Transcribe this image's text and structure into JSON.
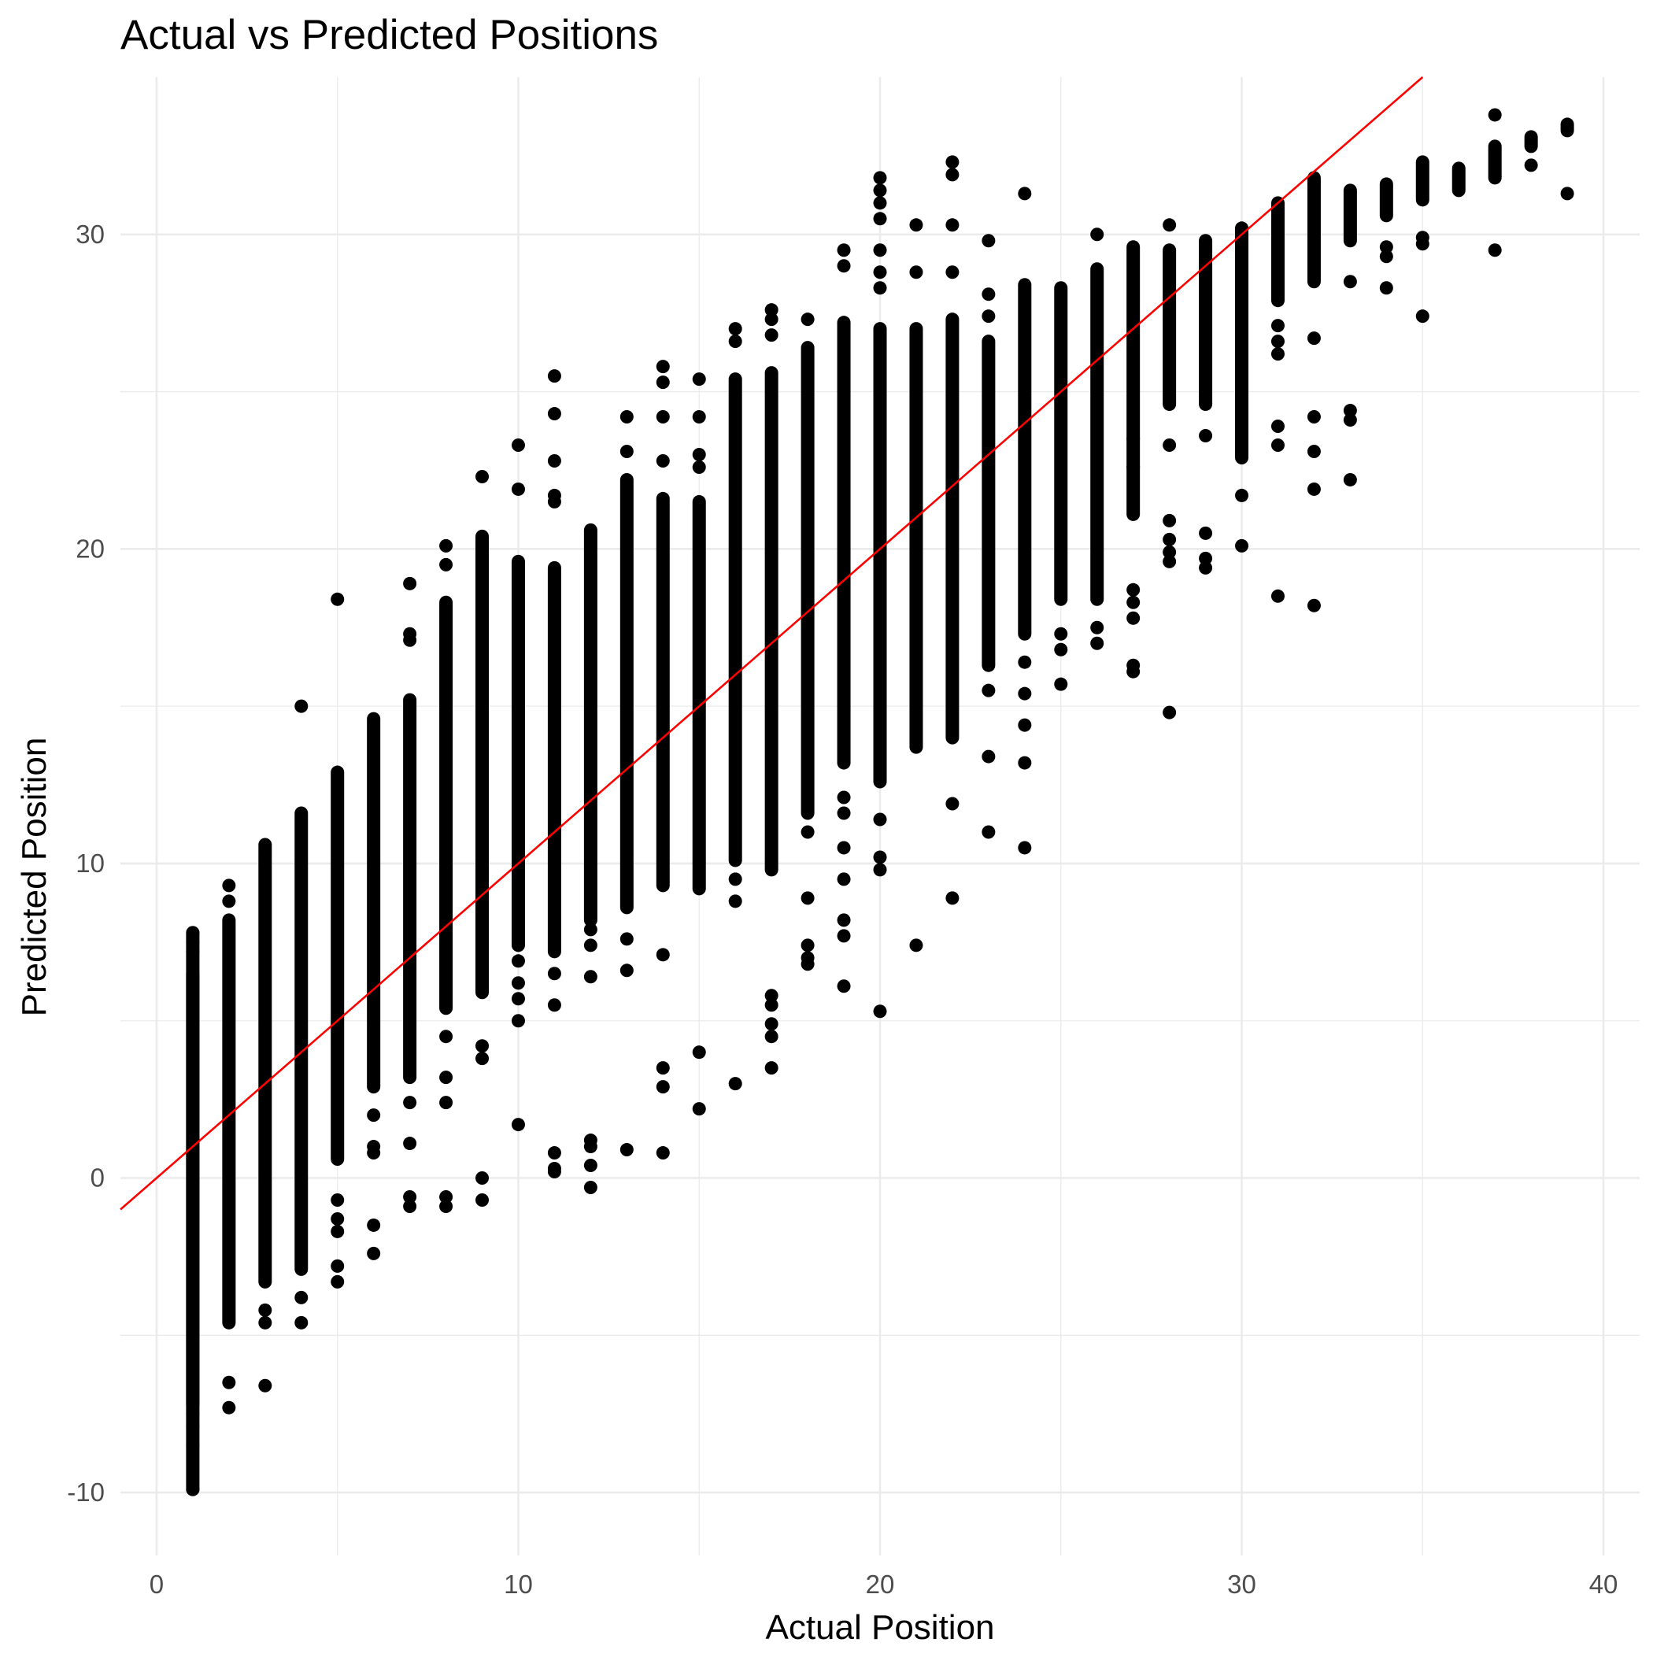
{
  "chart_data": {
    "type": "scatter",
    "title": "Actual vs Predicted Positions",
    "xlabel": "Actual Position",
    "ylabel": "Predicted Position",
    "xlim": [
      -1,
      41
    ],
    "ylim": [
      -12,
      35
    ],
    "x_ticks": [
      0,
      10,
      20,
      30,
      40
    ],
    "y_ticks": [
      -10,
      0,
      10,
      20,
      30
    ],
    "x_tick_labels": [
      "0",
      "10",
      "20",
      "30",
      "40"
    ],
    "y_tick_labels": [
      "-10",
      "0",
      "10",
      "20",
      "30"
    ],
    "grid": true,
    "legend": "none",
    "point_color": "#000000",
    "reference_line": {
      "slope": 1,
      "intercept": 0,
      "color": "#ff0000"
    },
    "groups": [
      {
        "x": 1,
        "ranges": [
          [
            -7.2,
            6.5
          ],
          [
            -9.9,
            7.8
          ]
        ],
        "points": [
          7.8,
          7.5,
          7.2,
          -7.5,
          -7.9,
          -8.5,
          -9.9
        ]
      },
      {
        "x": 2,
        "ranges": [
          [
            -4.6,
            8.2
          ]
        ],
        "points": [
          9.3,
          8.8,
          -6.5,
          -7.3
        ]
      },
      {
        "x": 3,
        "ranges": [
          [
            -3.3,
            10.6
          ]
        ],
        "points": [
          -4.2,
          -4.6,
          -6.6
        ]
      },
      {
        "x": 4,
        "ranges": [
          [
            -2.9,
            11.6
          ]
        ],
        "points": [
          15.0,
          -3.8,
          -4.6
        ]
      },
      {
        "x": 5,
        "ranges": [
          [
            0.6,
            12.9
          ]
        ],
        "points": [
          18.4,
          -0.7,
          -1.3,
          -1.7,
          -2.8,
          -3.3
        ]
      },
      {
        "x": 6,
        "ranges": [
          [
            2.9,
            14.6
          ]
        ],
        "points": [
          2.0,
          1.0,
          0.8,
          -1.5,
          -2.4
        ]
      },
      {
        "x": 7,
        "ranges": [
          [
            3.2,
            15.2
          ]
        ],
        "points": [
          18.9,
          17.3,
          17.1,
          2.4,
          1.1,
          -0.6,
          -0.9
        ]
      },
      {
        "x": 8,
        "ranges": [
          [
            5.4,
            18.3
          ]
        ],
        "points": [
          20.1,
          19.5,
          4.5,
          3.2,
          2.4,
          -0.6,
          -0.9
        ]
      },
      {
        "x": 9,
        "ranges": [
          [
            5.9,
            20.4
          ]
        ],
        "points": [
          22.3,
          4.2,
          3.8,
          0.0,
          -0.7
        ]
      },
      {
        "x": 10,
        "ranges": [
          [
            7.4,
            19.6
          ]
        ],
        "points": [
          23.3,
          21.9,
          6.9,
          6.2,
          5.7,
          5.0,
          1.7
        ]
      },
      {
        "x": 11,
        "ranges": [
          [
            7.2,
            19.4
          ]
        ],
        "points": [
          25.5,
          24.3,
          22.8,
          21.7,
          21.5,
          6.5,
          5.5,
          0.8,
          0.3,
          0.2
        ]
      },
      {
        "x": 12,
        "ranges": [
          [
            8.2,
            20.6
          ]
        ],
        "points": [
          7.9,
          7.4,
          6.4,
          1.2,
          1.0,
          0.4,
          -0.3
        ]
      },
      {
        "x": 13,
        "ranges": [
          [
            8.6,
            22.2
          ]
        ],
        "points": [
          24.2,
          23.1,
          7.6,
          6.6,
          0.9
        ]
      },
      {
        "x": 14,
        "ranges": [
          [
            9.3,
            21.6
          ]
        ],
        "points": [
          25.8,
          25.3,
          24.2,
          22.8,
          7.1,
          3.5,
          2.9,
          0.8
        ]
      },
      {
        "x": 15,
        "ranges": [
          [
            9.2,
            21.5
          ]
        ],
        "points": [
          25.4,
          24.2,
          23.0,
          22.6,
          4.0,
          2.2
        ]
      },
      {
        "x": 16,
        "ranges": [
          [
            10.1,
            25.4
          ]
        ],
        "points": [
          27.0,
          26.6,
          9.5,
          8.8,
          3.0
        ]
      },
      {
        "x": 17,
        "ranges": [
          [
            9.8,
            25.6
          ]
        ],
        "points": [
          27.6,
          27.3,
          26.8,
          5.8,
          5.5,
          4.9,
          4.5,
          3.5
        ]
      },
      {
        "x": 18,
        "ranges": [
          [
            11.6,
            26.4
          ]
        ],
        "points": [
          27.3,
          11.0,
          8.9,
          7.4,
          6.8,
          7.0
        ]
      },
      {
        "x": 19,
        "ranges": [
          [
            13.2,
            27.2
          ]
        ],
        "points": [
          29.5,
          29.0,
          12.1,
          11.6,
          10.5,
          9.5,
          8.2,
          7.7,
          6.1
        ]
      },
      {
        "x": 20,
        "ranges": [
          [
            12.6,
            27.0
          ]
        ],
        "points": [
          31.8,
          31.4,
          31.0,
          30.5,
          29.5,
          28.8,
          28.3,
          11.4,
          10.2,
          9.8,
          5.3
        ]
      },
      {
        "x": 21,
        "ranges": [
          [
            13.7,
            27.0
          ]
        ],
        "points": [
          30.3,
          28.8,
          7.4
        ]
      },
      {
        "x": 22,
        "ranges": [
          [
            14.0,
            27.3
          ]
        ],
        "points": [
          32.3,
          31.9,
          30.3,
          28.8,
          11.9,
          8.9
        ]
      },
      {
        "x": 23,
        "ranges": [
          [
            16.3,
            26.6
          ]
        ],
        "points": [
          29.8,
          28.1,
          27.4,
          15.5,
          13.4,
          11.0
        ]
      },
      {
        "x": 24,
        "ranges": [
          [
            17.3,
            28.4
          ]
        ],
        "points": [
          31.3,
          16.4,
          15.4,
          14.4,
          13.2,
          10.5
        ]
      },
      {
        "x": 25,
        "ranges": [
          [
            18.4,
            28.3
          ]
        ],
        "points": [
          17.3,
          16.8,
          15.7
        ]
      },
      {
        "x": 26,
        "ranges": [
          [
            18.4,
            28.9
          ]
        ],
        "points": [
          30.0,
          17.5,
          17.0
        ]
      },
      {
        "x": 27,
        "ranges": [
          [
            21.1,
            29.6
          ]
        ],
        "points": [
          23.5,
          22.6,
          18.7,
          18.3,
          17.8,
          16.3,
          16.1
        ]
      },
      {
        "x": 28,
        "ranges": [
          [
            24.6,
            29.5
          ]
        ],
        "points": [
          30.3,
          23.3,
          20.9,
          20.3,
          19.9,
          19.6,
          14.8
        ]
      },
      {
        "x": 29,
        "ranges": [
          [
            24.6,
            29.8
          ]
        ],
        "points": [
          23.6,
          20.5,
          19.7,
          19.4
        ]
      },
      {
        "x": 30,
        "ranges": [
          [
            22.9,
            30.2
          ]
        ],
        "points": [
          21.7,
          20.1
        ]
      },
      {
        "x": 31,
        "ranges": [
          [
            27.9,
            31.0
          ]
        ],
        "points": [
          27.1,
          26.6,
          26.2,
          23.9,
          23.3,
          18.5
        ]
      },
      {
        "x": 32,
        "ranges": [
          [
            28.5,
            31.8
          ]
        ],
        "points": [
          26.7,
          24.2,
          23.1,
          21.9,
          18.2
        ]
      },
      {
        "x": 33,
        "ranges": [
          [
            29.8,
            31.4
          ]
        ],
        "points": [
          28.5,
          24.4,
          24.1,
          22.2
        ]
      },
      {
        "x": 34,
        "ranges": [
          [
            30.6,
            31.6
          ]
        ],
        "points": [
          29.6,
          29.3,
          28.3
        ]
      },
      {
        "x": 35,
        "ranges": [
          [
            31.1,
            32.3
          ]
        ],
        "points": [
          29.9,
          29.7,
          27.4
        ]
      },
      {
        "x": 36,
        "ranges": [
          [
            31.4,
            32.1
          ]
        ],
        "points": []
      },
      {
        "x": 37,
        "ranges": [
          [
            31.8,
            32.8
          ]
        ],
        "points": [
          33.8,
          29.5
        ]
      },
      {
        "x": 38,
        "ranges": [
          [
            32.8,
            33.1
          ]
        ],
        "points": [
          32.2
        ]
      },
      {
        "x": 39,
        "ranges": [
          [
            33.3,
            33.5
          ]
        ],
        "points": [
          31.3
        ]
      }
    ]
  }
}
